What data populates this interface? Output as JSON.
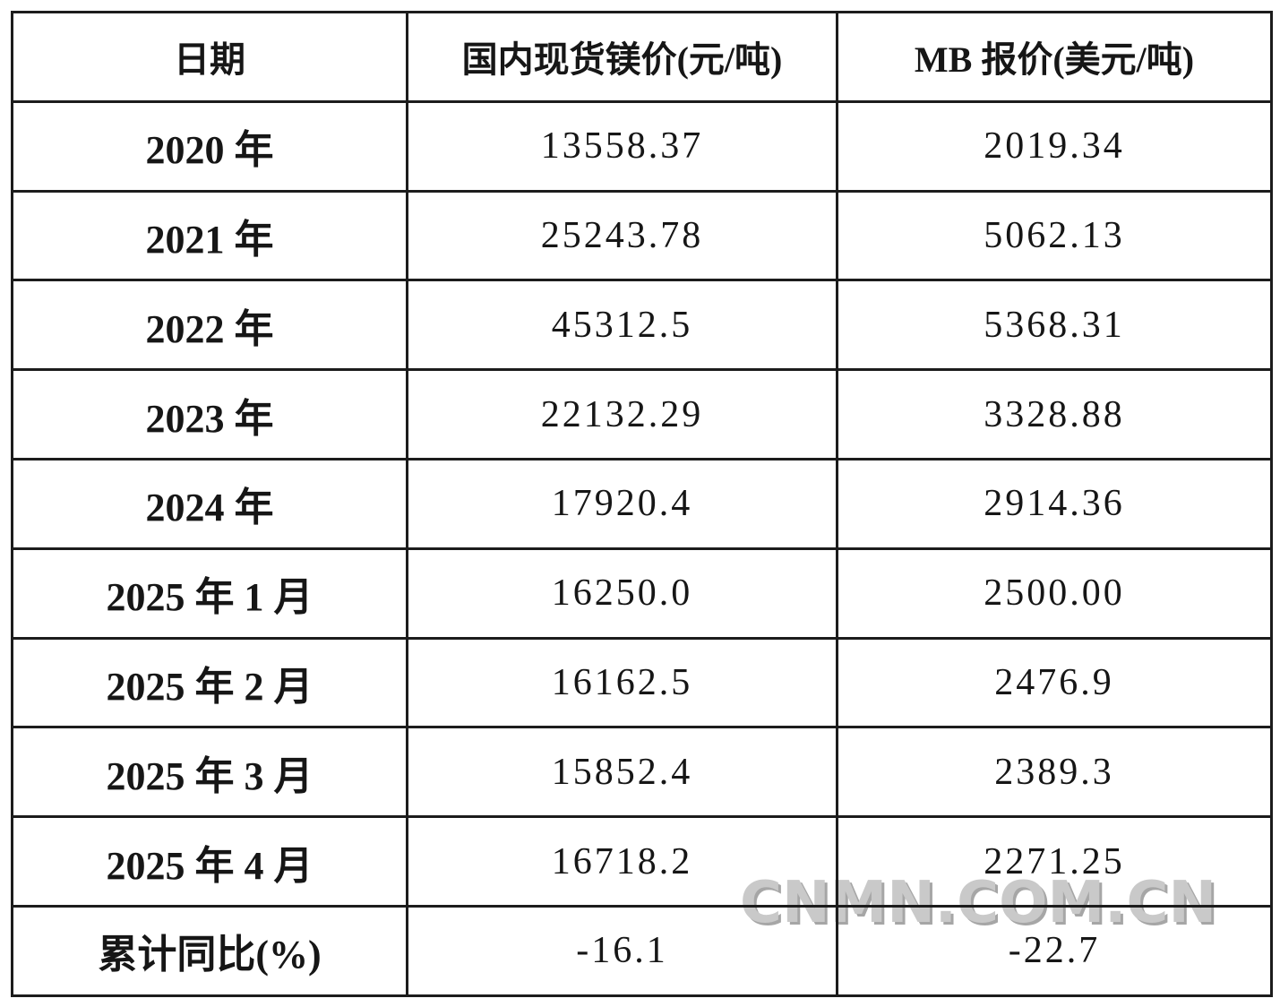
{
  "watermark": {
    "text": "CNMN.COM.CN",
    "color": "#c9c9c9"
  },
  "table": {
    "headers": [
      {
        "label": "日期"
      },
      {
        "label": "国内现货镁价(元/吨)"
      },
      {
        "label": "MB 报价(美元/吨)"
      }
    ],
    "rows": [
      {
        "date": "2020 年",
        "domestic": "13558.37",
        "mb": "2019.34"
      },
      {
        "date": "2021 年",
        "domestic": "25243.78",
        "mb": "5062.13"
      },
      {
        "date": "2022 年",
        "domestic": "45312.5",
        "mb": "5368.31"
      },
      {
        "date": "2023 年",
        "domestic": "22132.29",
        "mb": "3328.88"
      },
      {
        "date": "2024 年",
        "domestic": "17920.4",
        "mb": "2914.36"
      },
      {
        "date": "2025 年 1 月",
        "domestic": "16250.0",
        "mb": "2500.00"
      },
      {
        "date": "2025 年 2 月",
        "domestic": "16162.5",
        "mb": "2476.9"
      },
      {
        "date": "2025 年 3 月",
        "domestic": "15852.4",
        "mb": "2389.3"
      },
      {
        "date": "2025 年 4 月",
        "domestic": "16718.2",
        "mb": "2271.25"
      },
      {
        "date": "累计同比(%)",
        "domestic": "-16.1",
        "mb": "-22.7"
      }
    ]
  },
  "chart_data": {
    "type": "table",
    "columns": [
      "日期",
      "国内现货镁价(元/吨)",
      "MB 报价(美元/吨)"
    ],
    "rows": [
      [
        "2020 年",
        13558.37,
        2019.34
      ],
      [
        "2021 年",
        25243.78,
        5062.13
      ],
      [
        "2022 年",
        45312.5,
        5368.31
      ],
      [
        "2023 年",
        22132.29,
        3328.88
      ],
      [
        "2024 年",
        17920.4,
        2914.36
      ],
      [
        "2025 年 1 月",
        16250.0,
        2500.0
      ],
      [
        "2025 年 2 月",
        16162.5,
        2476.9
      ],
      [
        "2025 年 3 月",
        15852.4,
        2389.3
      ],
      [
        "2025 年 4 月",
        16718.2,
        2271.25
      ],
      [
        "累计同比(%)",
        -16.1,
        -22.7
      ]
    ]
  }
}
